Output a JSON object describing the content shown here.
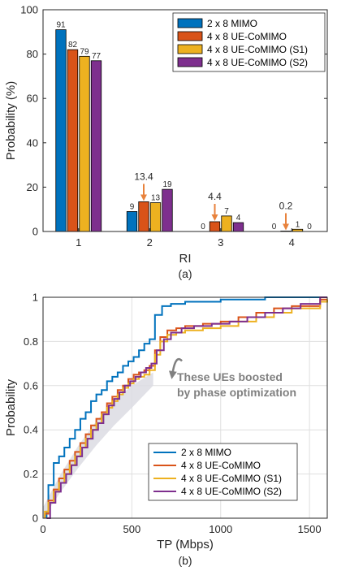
{
  "colors": {
    "blue": "#0072BD",
    "orange": "#D95319",
    "yellow": "#EDB120",
    "purple": "#7E2F8E",
    "annotation_arrow": "#E8823C",
    "note_gray": "#808080",
    "band_gray": "#DCDCE3"
  },
  "chart_data": [
    {
      "type": "bar",
      "caption": "(a)",
      "xlabel": "RI",
      "ylabel": "Probability (%)",
      "ylim": [
        0,
        100
      ],
      "yticks": [
        0,
        20,
        40,
        60,
        80,
        100
      ],
      "categories": [
        "1",
        "2",
        "3",
        "4"
      ],
      "legend_position": "top-right",
      "series": [
        {
          "name": "2 x 8 MIMO",
          "color": "#0072BD",
          "values": [
            91,
            9,
            0,
            0
          ],
          "labels": [
            "91",
            "9",
            "0",
            "0"
          ]
        },
        {
          "name": "4 x 8 UE-CoMIMO",
          "color": "#D95319",
          "values": [
            82,
            13.4,
            4.4,
            0.2
          ],
          "labels": [
            "82",
            "",
            "",
            ""
          ]
        },
        {
          "name": "4 x 8 UE-CoMIMO (S1)",
          "color": "#EDB120",
          "values": [
            79,
            13,
            7,
            1
          ],
          "labels": [
            "79",
            "13",
            "7",
            "1"
          ]
        },
        {
          "name": "4 x 8 UE-CoMIMO (S2)",
          "color": "#7E2F8E",
          "values": [
            77,
            19,
            4,
            0
          ],
          "labels": [
            "77",
            "19",
            "4",
            "0"
          ]
        }
      ],
      "annotations": [
        {
          "category": "2",
          "series": 1,
          "text": "13.4"
        },
        {
          "category": "3",
          "series": 1,
          "text": "4.4"
        },
        {
          "category": "4",
          "series": 1,
          "text": "0.2"
        }
      ]
    },
    {
      "type": "line",
      "caption": "(b)",
      "xlabel": "TP (Mbps)",
      "ylabel": "Probability",
      "xlim": [
        0,
        1600
      ],
      "ylim": [
        0,
        1
      ],
      "xticks": [
        0,
        500,
        1000,
        1500
      ],
      "yticks": [
        0,
        0.2,
        0.4,
        0.6,
        0.8,
        1
      ],
      "ytick_labels": [
        "0",
        "0.2",
        "0.4",
        "0.6",
        "0.8",
        "1"
      ],
      "grid": true,
      "legend_position": "bottom-right",
      "note": {
        "lines": [
          "These UEs boosted",
          "by phase optimization"
        ]
      },
      "series": [
        {
          "name": "2 x 8 MIMO",
          "color": "#0072BD",
          "x": [
            20,
            30,
            60,
            90,
            120,
            150,
            180,
            210,
            240,
            270,
            300,
            330,
            360,
            390,
            420,
            450,
            480,
            510,
            540,
            570,
            600,
            630,
            670,
            720,
            800,
            900,
            1000,
            1100,
            1250,
            1400,
            1560,
            1600
          ],
          "y": [
            0.03,
            0.15,
            0.25,
            0.28,
            0.32,
            0.36,
            0.4,
            0.45,
            0.48,
            0.53,
            0.56,
            0.58,
            0.62,
            0.64,
            0.66,
            0.69,
            0.71,
            0.73,
            0.76,
            0.79,
            0.81,
            0.92,
            0.96,
            0.97,
            0.98,
            0.98,
            0.99,
            0.99,
            1.0,
            1.0,
            1.0,
            1.0
          ]
        },
        {
          "name": "4 x 8 UE-CoMIMO",
          "color": "#D95319",
          "x": [
            10,
            30,
            60,
            90,
            120,
            150,
            180,
            210,
            240,
            270,
            300,
            330,
            360,
            390,
            420,
            450,
            480,
            510,
            540,
            570,
            600,
            630,
            660,
            700,
            750,
            800,
            900,
            1000,
            1100,
            1200,
            1300,
            1400,
            1560,
            1600
          ],
          "y": [
            0.02,
            0.08,
            0.13,
            0.18,
            0.22,
            0.26,
            0.3,
            0.34,
            0.38,
            0.42,
            0.45,
            0.48,
            0.52,
            0.55,
            0.58,
            0.6,
            0.63,
            0.65,
            0.66,
            0.67,
            0.69,
            0.76,
            0.82,
            0.85,
            0.86,
            0.87,
            0.88,
            0.89,
            0.91,
            0.93,
            0.95,
            0.96,
            0.99,
            0.99
          ]
        },
        {
          "name": "4 x 8 UE-CoMIMO (S1)",
          "color": "#EDB120",
          "x": [
            10,
            30,
            60,
            90,
            120,
            150,
            180,
            210,
            240,
            270,
            300,
            330,
            360,
            390,
            420,
            450,
            480,
            510,
            540,
            570,
            600,
            630,
            660,
            700,
            750,
            800,
            900,
            1000,
            1100,
            1200,
            1300,
            1400,
            1560,
            1600
          ],
          "y": [
            0.03,
            0.07,
            0.12,
            0.16,
            0.2,
            0.24,
            0.28,
            0.32,
            0.36,
            0.4,
            0.43,
            0.47,
            0.5,
            0.53,
            0.56,
            0.59,
            0.61,
            0.63,
            0.64,
            0.65,
            0.67,
            0.74,
            0.8,
            0.83,
            0.84,
            0.85,
            0.86,
            0.87,
            0.89,
            0.91,
            0.93,
            0.95,
            0.98,
            0.99
          ]
        },
        {
          "name": "4 x 8 UE-CoMIMO (S2)",
          "color": "#7E2F8E",
          "x": [
            20,
            40,
            70,
            100,
            130,
            160,
            190,
            220,
            250,
            280,
            310,
            340,
            370,
            400,
            430,
            460,
            490,
            520,
            550,
            580,
            610,
            640,
            680,
            720,
            780,
            850,
            950,
            1050,
            1150,
            1250,
            1350,
            1450,
            1560,
            1600
          ],
          "y": [
            0.0,
            0.07,
            0.12,
            0.16,
            0.2,
            0.24,
            0.28,
            0.32,
            0.36,
            0.4,
            0.43,
            0.47,
            0.51,
            0.54,
            0.57,
            0.6,
            0.62,
            0.64,
            0.66,
            0.68,
            0.7,
            0.76,
            0.81,
            0.84,
            0.86,
            0.87,
            0.88,
            0.89,
            0.91,
            0.93,
            0.95,
            0.97,
            1.0,
            1.0
          ]
        }
      ]
    }
  ]
}
